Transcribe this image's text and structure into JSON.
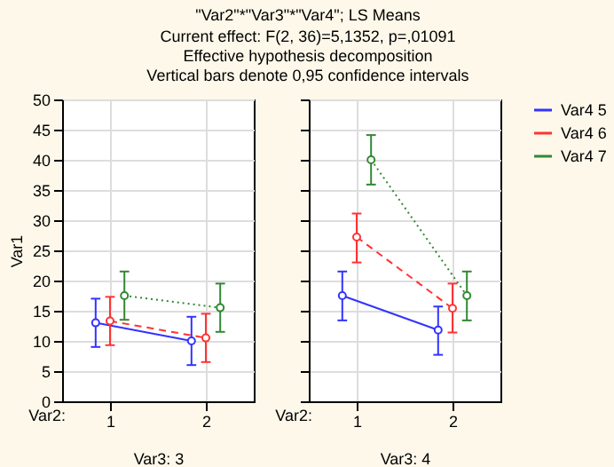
{
  "chart_data": [
    {
      "type": "line",
      "title": "\"Var2\"*\"Var3\"*\"Var4\"; LS Means",
      "subtitle": "Current effect: F(2, 36)=5,1352, p=,01091\nEffective hypothesis decomposition\nVertical bars denote 0,95 confidence intervals",
      "xlabel": "Var3: 3",
      "ylabel": "Var1",
      "annotations": [
        "Var2:"
      ],
      "categories": [
        "1",
        "2"
      ],
      "ylim": [
        0,
        50
      ],
      "yticks": [
        0,
        5,
        10,
        15,
        20,
        25,
        30,
        35,
        40,
        45,
        50
      ],
      "grid": true,
      "marker": "circle",
      "series": [
        {
          "color": "#3333ff",
          "line_style": "solid",
          "values": [
            13,
            10
          ],
          "errors": [
            [
              9,
              17
            ],
            [
              6,
              14
            ]
          ]
        },
        {
          "color": "#ff3333",
          "line_style": "dashed",
          "values": [
            13.3,
            10.5
          ],
          "errors": [
            [
              9.3,
              17.3
            ],
            [
              6.5,
              14.5
            ]
          ]
        },
        {
          "color": "#338833",
          "line_style": "dotted",
          "values": [
            17.5,
            15.5
          ],
          "errors": [
            [
              13.5,
              21.5
            ],
            [
              11.5,
              19.5
            ]
          ]
        }
      ]
    },
    {
      "type": "line",
      "xlabel": "Var3: 4",
      "annotations": [
        "Var2:"
      ],
      "categories": [
        "1",
        "2"
      ],
      "ylim": [
        0,
        50
      ],
      "yticks": [
        0,
        5,
        10,
        15,
        20,
        25,
        30,
        35,
        40,
        45,
        50
      ],
      "grid": true,
      "legend": "right",
      "marker": "circle",
      "tick_labels": "x",
      "series": [
        {
          "name": "Var4 5",
          "color": "#3333ff",
          "line_style": "solid",
          "values": [
            17.5,
            11.8
          ],
          "errors": [
            [
              13.4,
              21.5
            ],
            [
              7.7,
              15.7
            ]
          ]
        },
        {
          "name": "Var4 6",
          "color": "#ff3333",
          "line_style": "dashed",
          "values": [
            27.2,
            15.4
          ],
          "errors": [
            [
              23,
              31.1
            ],
            [
              11.4,
              19.5
            ]
          ]
        },
        {
          "name": "Var4 7",
          "color": "#338833",
          "line_style": "dotted",
          "values": [
            40,
            17.5
          ],
          "errors": [
            [
              35.9,
              44.1
            ],
            [
              13.4,
              21.5
            ]
          ]
        }
      ]
    }
  ]
}
